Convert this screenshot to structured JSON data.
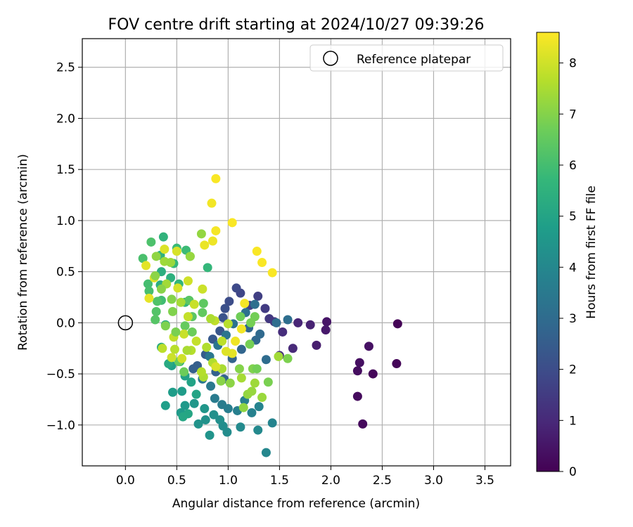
{
  "chart_data": {
    "type": "scatter",
    "title": "FOV centre drift starting at 2024/10/27 09:39:26",
    "xlabel": "Angular distance from reference (arcmin)",
    "ylabel": "Rotation from reference (arcmin)",
    "xlim": [
      -0.42,
      3.75
    ],
    "ylim": [
      -1.4,
      2.78
    ],
    "xticks": [
      "0.0",
      "0.5",
      "1.0",
      "1.5",
      "2.0",
      "2.5",
      "3.0",
      "3.5"
    ],
    "xtick_values": [
      0,
      0.5,
      1,
      1.5,
      2,
      2.5,
      3,
      3.5
    ],
    "yticks": [
      "−1.0",
      "−0.5",
      "0.0",
      "0.5",
      "1.0",
      "1.5",
      "2.0",
      "2.5"
    ],
    "ytick_values": [
      -1,
      -0.5,
      0,
      0.5,
      1,
      1.5,
      2,
      2.5
    ],
    "grid": true,
    "legend": {
      "placement": "top-right",
      "entries": [
        "Reference platepar"
      ]
    },
    "reference_point": {
      "x": 0.0,
      "y": 0.0
    },
    "colorbar": {
      "label": "Hours from first FF file",
      "range": [
        0,
        8.6
      ],
      "ticks": [
        "0",
        "1",
        "2",
        "3",
        "4",
        "5",
        "6",
        "7",
        "8"
      ],
      "tick_values": [
        0,
        1,
        2,
        3,
        4,
        5,
        6,
        7,
        8
      ],
      "colormap": [
        "#440154",
        "#482878",
        "#3e4a89",
        "#31688e",
        "#26828e",
        "#1f9e89",
        "#35b779",
        "#6dcd59",
        "#b4de2c",
        "#fde725"
      ]
    },
    "points": [
      {
        "x": 2.65,
        "y": -0.01,
        "h": 0.05
      },
      {
        "x": 2.64,
        "y": -0.4,
        "h": 0.1
      },
      {
        "x": 2.41,
        "y": -0.5,
        "h": 0.15
      },
      {
        "x": 2.31,
        "y": -0.99,
        "h": 0.2
      },
      {
        "x": 2.26,
        "y": -0.72,
        "h": 0.25
      },
      {
        "x": 2.26,
        "y": -0.47,
        "h": 0.3
      },
      {
        "x": 2.28,
        "y": -0.39,
        "h": 0.35
      },
      {
        "x": 2.37,
        "y": -0.23,
        "h": 0.4
      },
      {
        "x": 1.96,
        "y": 0.01,
        "h": 0.5
      },
      {
        "x": 1.95,
        "y": -0.07,
        "h": 0.6
      },
      {
        "x": 1.86,
        "y": -0.22,
        "h": 0.7
      },
      {
        "x": 1.8,
        "y": -0.02,
        "h": 0.8
      },
      {
        "x": 1.68,
        "y": 0.0,
        "h": 0.9
      },
      {
        "x": 1.63,
        "y": -0.25,
        "h": 1.0
      },
      {
        "x": 1.53,
        "y": -0.09,
        "h": 1.1
      },
      {
        "x": 1.5,
        "y": -0.32,
        "h": 1.2
      },
      {
        "x": 1.45,
        "y": 0.01,
        "h": 1.3
      },
      {
        "x": 1.4,
        "y": 0.04,
        "h": 1.4
      },
      {
        "x": 1.36,
        "y": 0.14,
        "h": 1.5
      },
      {
        "x": 1.29,
        "y": 0.26,
        "h": 1.6
      },
      {
        "x": 1.21,
        "y": 0.17,
        "h": 1.7
      },
      {
        "x": 1.12,
        "y": 0.29,
        "h": 1.8
      },
      {
        "x": 1.08,
        "y": 0.34,
        "h": 1.9
      },
      {
        "x": 1.01,
        "y": 0.21,
        "h": 2.0
      },
      {
        "x": 0.97,
        "y": 0.14,
        "h": 2.1
      },
      {
        "x": 0.95,
        "y": 0.05,
        "h": 2.2
      },
      {
        "x": 0.92,
        "y": -0.08,
        "h": 2.3
      },
      {
        "x": 0.85,
        "y": -0.16,
        "h": 2.4
      },
      {
        "x": 0.78,
        "y": -0.31,
        "h": 2.5
      },
      {
        "x": 0.7,
        "y": -0.42,
        "h": 2.55
      },
      {
        "x": 0.66,
        "y": -0.45,
        "h": 2.6
      },
      {
        "x": 0.88,
        "y": -0.48,
        "h": 2.65
      },
      {
        "x": 0.96,
        "y": -0.55,
        "h": 2.7
      },
      {
        "x": 1.04,
        "y": -0.35,
        "h": 2.75
      },
      {
        "x": 1.13,
        "y": -0.26,
        "h": 2.8
      },
      {
        "x": 1.2,
        "y": -0.05,
        "h": 2.85
      },
      {
        "x": 1.27,
        "y": -0.17,
        "h": 2.9
      },
      {
        "x": 1.31,
        "y": -0.11,
        "h": 2.95
      },
      {
        "x": 1.37,
        "y": -0.36,
        "h": 3.0
      },
      {
        "x": 1.47,
        "y": 0.0,
        "h": 3.05
      },
      {
        "x": 1.58,
        "y": 0.03,
        "h": 3.1
      },
      {
        "x": 1.26,
        "y": 0.18,
        "h": 3.15
      },
      {
        "x": 1.17,
        "y": 0.1,
        "h": 3.2
      },
      {
        "x": 1.05,
        "y": -0.01,
        "h": 3.25
      },
      {
        "x": 0.98,
        "y": -0.12,
        "h": 3.3
      },
      {
        "x": 0.9,
        "y": -0.22,
        "h": 3.35
      },
      {
        "x": 0.82,
        "y": -0.33,
        "h": 3.4
      },
      {
        "x": 0.75,
        "y": -0.55,
        "h": 3.45
      },
      {
        "x": 0.83,
        "y": -0.62,
        "h": 3.5
      },
      {
        "x": 0.87,
        "y": -0.74,
        "h": 3.55
      },
      {
        "x": 0.94,
        "y": -0.8,
        "h": 3.6
      },
      {
        "x": 1.0,
        "y": -0.84,
        "h": 3.65
      },
      {
        "x": 1.09,
        "y": -0.86,
        "h": 3.7
      },
      {
        "x": 1.16,
        "y": -0.76,
        "h": 3.75
      },
      {
        "x": 1.23,
        "y": -0.88,
        "h": 3.8
      },
      {
        "x": 1.3,
        "y": -0.82,
        "h": 3.85
      },
      {
        "x": 1.43,
        "y": -0.98,
        "h": 3.9
      },
      {
        "x": 1.37,
        "y": -1.27,
        "h": 4.0
      },
      {
        "x": 1.29,
        "y": -1.05,
        "h": 4.05
      },
      {
        "x": 1.12,
        "y": -1.02,
        "h": 4.1
      },
      {
        "x": 0.99,
        "y": -1.07,
        "h": 4.15
      },
      {
        "x": 0.95,
        "y": -1.01,
        "h": 4.2
      },
      {
        "x": 0.92,
        "y": -0.95,
        "h": 4.25
      },
      {
        "x": 0.86,
        "y": -0.9,
        "h": 4.3
      },
      {
        "x": 0.78,
        "y": -0.95,
        "h": 4.35
      },
      {
        "x": 0.71,
        "y": -0.99,
        "h": 4.4
      },
      {
        "x": 0.82,
        "y": -1.1,
        "h": 4.45
      },
      {
        "x": 0.77,
        "y": -0.84,
        "h": 4.5
      },
      {
        "x": 0.67,
        "y": -0.79,
        "h": 4.55
      },
      {
        "x": 0.58,
        "y": -0.81,
        "h": 4.6
      },
      {
        "x": 0.54,
        "y": -0.88,
        "h": 4.65
      },
      {
        "x": 0.55,
        "y": -0.67,
        "h": 4.7
      },
      {
        "x": 0.46,
        "y": -0.68,
        "h": 4.75
      },
      {
        "x": 0.39,
        "y": -0.81,
        "h": 4.8
      },
      {
        "x": 0.45,
        "y": -0.42,
        "h": 4.85
      },
      {
        "x": 0.58,
        "y": -0.52,
        "h": 4.9
      },
      {
        "x": 0.64,
        "y": -0.58,
        "h": 4.95
      },
      {
        "x": 0.69,
        "y": -0.7,
        "h": 5.0
      },
      {
        "x": 0.61,
        "y": -0.89,
        "h": 5.05
      },
      {
        "x": 0.56,
        "y": -0.92,
        "h": 5.1
      },
      {
        "x": 0.53,
        "y": -0.38,
        "h": 5.15
      },
      {
        "x": 0.42,
        "y": -0.4,
        "h": 5.2
      },
      {
        "x": 0.35,
        "y": -0.24,
        "h": 5.25
      },
      {
        "x": 0.39,
        "y": -0.02,
        "h": 5.3
      },
      {
        "x": 0.34,
        "y": 0.37,
        "h": 5.35
      },
      {
        "x": 0.35,
        "y": 0.5,
        "h": 5.4
      },
      {
        "x": 0.44,
        "y": 0.44,
        "h": 5.45
      },
      {
        "x": 0.34,
        "y": 0.66,
        "h": 5.5
      },
      {
        "x": 0.37,
        "y": 0.84,
        "h": 5.55
      },
      {
        "x": 0.52,
        "y": 0.38,
        "h": 5.6
      },
      {
        "x": 0.58,
        "y": 0.2,
        "h": 5.65
      },
      {
        "x": 0.8,
        "y": 0.54,
        "h": 5.7
      },
      {
        "x": 0.47,
        "y": 0.58,
        "h": 5.75
      },
      {
        "x": 0.5,
        "y": 0.73,
        "h": 5.8
      },
      {
        "x": 0.59,
        "y": 0.71,
        "h": 5.85
      },
      {
        "x": 0.63,
        "y": 0.65,
        "h": 5.9
      },
      {
        "x": 0.35,
        "y": 0.22,
        "h": 5.95
      },
      {
        "x": 0.22,
        "y": 0.38,
        "h": 6.0
      },
      {
        "x": 0.23,
        "y": 0.31,
        "h": 6.05
      },
      {
        "x": 0.17,
        "y": 0.63,
        "h": 6.1
      },
      {
        "x": 0.25,
        "y": 0.79,
        "h": 6.15
      },
      {
        "x": 0.31,
        "y": 0.21,
        "h": 6.2
      },
      {
        "x": 0.3,
        "y": 0.11,
        "h": 6.25
      },
      {
        "x": 0.29,
        "y": 0.03,
        "h": 6.3
      },
      {
        "x": 0.62,
        "y": 0.22,
        "h": 6.35
      },
      {
        "x": 0.65,
        "y": 0.06,
        "h": 6.4
      },
      {
        "x": 0.76,
        "y": 0.19,
        "h": 6.45
      },
      {
        "x": 0.75,
        "y": 0.1,
        "h": 6.5
      },
      {
        "x": 0.58,
        "y": -0.03,
        "h": 6.55
      },
      {
        "x": 0.52,
        "y": -0.38,
        "h": 6.6
      },
      {
        "x": 0.57,
        "y": -0.48,
        "h": 6.65
      },
      {
        "x": 1.12,
        "y": 0.06,
        "h": 6.7
      },
      {
        "x": 1.26,
        "y": 0.06,
        "h": 6.75
      },
      {
        "x": 1.21,
        "y": -0.21,
        "h": 6.8
      },
      {
        "x": 1.39,
        "y": -0.58,
        "h": 6.85
      },
      {
        "x": 1.58,
        "y": -0.35,
        "h": 6.9
      },
      {
        "x": 1.24,
        "y": -0.45,
        "h": 6.95
      },
      {
        "x": 1.11,
        "y": -0.45,
        "h": 7.0
      },
      {
        "x": 0.93,
        "y": -0.57,
        "h": 7.05
      },
      {
        "x": 1.02,
        "y": -0.59,
        "h": 7.1
      },
      {
        "x": 1.15,
        "y": -0.83,
        "h": 7.15
      },
      {
        "x": 1.19,
        "y": -0.7,
        "h": 7.2
      },
      {
        "x": 1.23,
        "y": -0.67,
        "h": 7.25
      },
      {
        "x": 1.33,
        "y": -0.73,
        "h": 7.3
      },
      {
        "x": 1.26,
        "y": -0.59,
        "h": 7.35
      },
      {
        "x": 1.49,
        "y": -0.33,
        "h": 7.4
      },
      {
        "x": 1.13,
        "y": -0.54,
        "h": 7.45
      },
      {
        "x": 0.94,
        "y": -0.45,
        "h": 7.5
      },
      {
        "x": 0.76,
        "y": -0.53,
        "h": 7.55
      },
      {
        "x": 0.85,
        "y": -0.39,
        "h": 7.6
      },
      {
        "x": 0.64,
        "y": -0.27,
        "h": 7.65
      },
      {
        "x": 0.48,
        "y": -0.26,
        "h": 7.7
      },
      {
        "x": 0.36,
        "y": -0.25,
        "h": 7.75
      },
      {
        "x": 0.47,
        "y": -0.14,
        "h": 7.8
      },
      {
        "x": 0.61,
        "y": 0.06,
        "h": 7.85
      },
      {
        "x": 0.67,
        "y": 0.18,
        "h": 7.9
      },
      {
        "x": 0.75,
        "y": 0.33,
        "h": 7.95
      },
      {
        "x": 0.61,
        "y": 0.41,
        "h": 8.0
      },
      {
        "x": 0.51,
        "y": 0.34,
        "h": 8.05
      },
      {
        "x": 0.5,
        "y": 0.7,
        "h": 8.1
      },
      {
        "x": 0.38,
        "y": 0.72,
        "h": 8.15
      },
      {
        "x": 0.28,
        "y": 0.44,
        "h": 8.2
      },
      {
        "x": 0.2,
        "y": 0.56,
        "h": 8.25
      },
      {
        "x": 0.23,
        "y": 0.24,
        "h": 8.3
      },
      {
        "x": 0.77,
        "y": 0.76,
        "h": 8.35
      },
      {
        "x": 0.85,
        "y": 0.8,
        "h": 8.4
      },
      {
        "x": 0.84,
        "y": 1.17,
        "h": 8.45
      },
      {
        "x": 0.88,
        "y": 0.9,
        "h": 8.5
      },
      {
        "x": 0.88,
        "y": 1.41,
        "h": 8.55
      },
      {
        "x": 1.04,
        "y": 0.98,
        "h": 8.55
      },
      {
        "x": 1.28,
        "y": 0.7,
        "h": 8.55
      },
      {
        "x": 1.33,
        "y": 0.59,
        "h": 8.55
      },
      {
        "x": 1.43,
        "y": 0.49,
        "h": 8.55
      },
      {
        "x": 1.16,
        "y": 0.19,
        "h": 8.5
      },
      {
        "x": 1.13,
        "y": -0.06,
        "h": 8.45
      },
      {
        "x": 1.07,
        "y": -0.18,
        "h": 8.4
      },
      {
        "x": 1.04,
        "y": -0.3,
        "h": 8.3
      },
      {
        "x": 0.98,
        "y": -0.28,
        "h": 8.2
      },
      {
        "x": 0.88,
        "y": -0.43,
        "h": 8.1
      },
      {
        "x": 0.55,
        "y": -0.35,
        "h": 8.0
      },
      {
        "x": 0.45,
        "y": -0.34,
        "h": 7.95
      },
      {
        "x": 0.57,
        "y": -0.11,
        "h": 7.9
      },
      {
        "x": 0.69,
        "y": -0.18,
        "h": 7.85
      },
      {
        "x": 0.87,
        "y": 0.02,
        "h": 7.8
      },
      {
        "x": 0.94,
        "y": -0.18,
        "h": 7.75
      },
      {
        "x": 1.0,
        "y": -0.01,
        "h": 7.7
      },
      {
        "x": 0.74,
        "y": -0.48,
        "h": 7.65
      },
      {
        "x": 0.79,
        "y": -0.24,
        "h": 7.6
      },
      {
        "x": 0.83,
        "y": 0.04,
        "h": 7.55
      },
      {
        "x": 0.6,
        "y": -0.27,
        "h": 7.5
      },
      {
        "x": 0.54,
        "y": 0.2,
        "h": 7.45
      },
      {
        "x": 0.4,
        "y": 0.38,
        "h": 7.4
      },
      {
        "x": 0.38,
        "y": 0.6,
        "h": 7.35
      },
      {
        "x": 0.44,
        "y": 0.59,
        "h": 7.3
      },
      {
        "x": 0.63,
        "y": 0.65,
        "h": 7.25
      },
      {
        "x": 0.74,
        "y": 0.87,
        "h": 7.2
      },
      {
        "x": 0.3,
        "y": 0.65,
        "h": 7.15
      },
      {
        "x": 0.29,
        "y": 0.46,
        "h": 7.1
      },
      {
        "x": 0.35,
        "y": 0.33,
        "h": 7.05
      },
      {
        "x": 0.45,
        "y": 0.23,
        "h": 7.0
      },
      {
        "x": 0.46,
        "y": 0.11,
        "h": 6.95
      },
      {
        "x": 0.39,
        "y": -0.03,
        "h": 6.9
      },
      {
        "x": 0.49,
        "y": -0.09,
        "h": 6.85
      },
      {
        "x": 1.22,
        "y": 0.0,
        "h": 6.8
      },
      {
        "x": 1.28,
        "y": -0.45,
        "h": 6.75
      },
      {
        "x": 0.65,
        "y": -0.09,
        "h": 6.65
      }
    ]
  }
}
